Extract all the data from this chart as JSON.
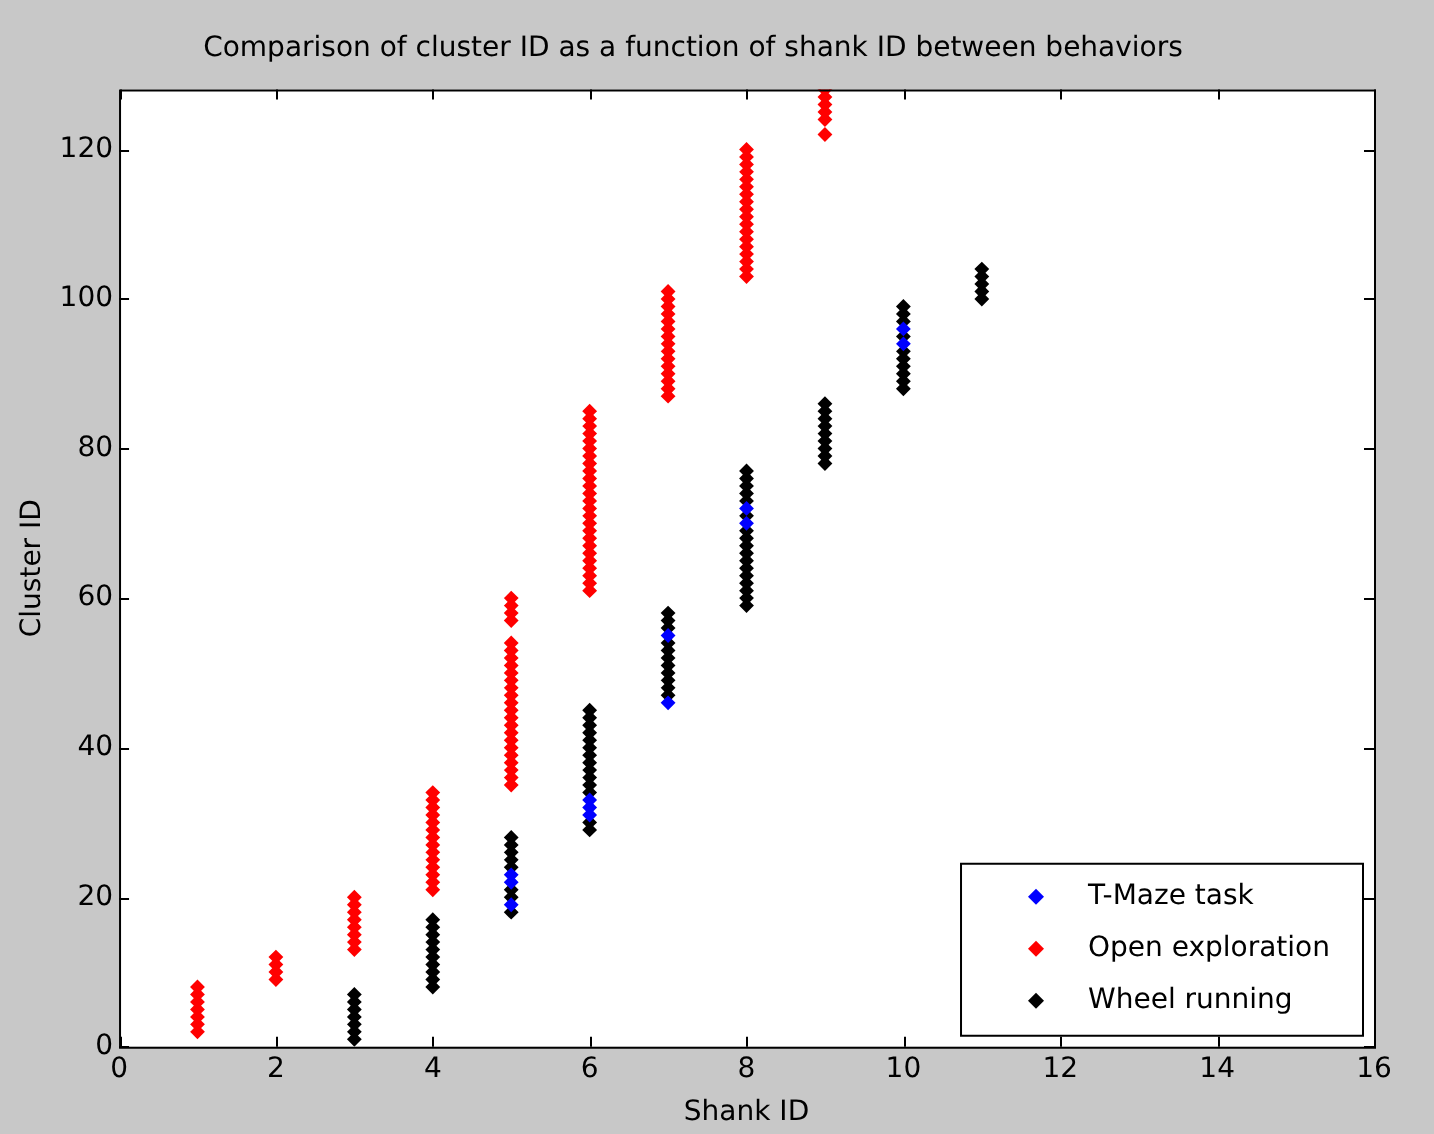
{
  "chart_data": {
    "type": "scatter",
    "title": "Comparison of cluster ID as a function of shank ID between behaviors",
    "xlabel": "Shank ID",
    "ylabel": "Cluster ID",
    "xlim": [
      0,
      16
    ],
    "xticks": [
      0,
      2,
      4,
      6,
      8,
      10,
      12,
      14,
      16
    ],
    "ylim": [
      0,
      128
    ],
    "yticks": [
      0,
      20,
      40,
      60,
      80,
      100,
      120
    ],
    "grid": false,
    "legend": "bottom right",
    "marker": "diamond",
    "series": [
      {
        "name": "T-Maze task",
        "color": "#0000ff",
        "x": [
          5,
          5,
          5,
          6,
          6,
          6,
          7,
          7,
          8,
          8,
          10,
          10
        ],
        "values": [
          19,
          22,
          23,
          31,
          32,
          33,
          46,
          55,
          70,
          72,
          94,
          96
        ]
      },
      {
        "name": "Open exploration",
        "color": "#ff0000",
        "x": [
          1,
          1,
          1,
          1,
          1,
          1,
          1,
          2,
          2,
          2,
          2,
          3,
          3,
          3,
          3,
          3,
          3,
          3,
          3,
          4,
          4,
          4,
          4,
          4,
          4,
          4,
          4,
          4,
          4,
          4,
          4,
          4,
          4,
          5,
          5,
          5,
          5,
          5,
          5,
          5,
          5,
          5,
          5,
          5,
          5,
          5,
          5,
          5,
          5,
          5,
          5,
          5,
          5,
          5,
          5,
          5,
          5,
          6,
          6,
          6,
          6,
          6,
          6,
          6,
          6,
          6,
          6,
          6,
          6,
          6,
          6,
          6,
          6,
          6,
          6,
          6,
          6,
          6,
          6,
          6,
          6,
          6,
          7,
          7,
          7,
          7,
          7,
          7,
          7,
          7,
          7,
          7,
          7,
          7,
          7,
          7,
          7,
          8,
          8,
          8,
          8,
          8,
          8,
          8,
          8,
          8,
          8,
          8,
          8,
          8,
          8,
          8,
          8,
          8,
          8,
          9,
          9,
          9,
          9,
          9,
          9
        ],
        "values": [
          2,
          3,
          4,
          5,
          6,
          7,
          8,
          9,
          10,
          11,
          12,
          13,
          14,
          15,
          16,
          17,
          18,
          19,
          20,
          21,
          22,
          23,
          24,
          25,
          26,
          27,
          28,
          29,
          30,
          31,
          32,
          33,
          34,
          35,
          36,
          37,
          38,
          39,
          40,
          41,
          42,
          43,
          44,
          45,
          46,
          47,
          48,
          49,
          50,
          51,
          52,
          53,
          54,
          57,
          58,
          59,
          60,
          61,
          62,
          63,
          64,
          65,
          66,
          67,
          68,
          69,
          70,
          71,
          72,
          73,
          74,
          75,
          76,
          77,
          78,
          79,
          80,
          81,
          82,
          83,
          84,
          85,
          87,
          88,
          89,
          90,
          91,
          92,
          93,
          94,
          95,
          96,
          97,
          98,
          99,
          100,
          101,
          103,
          104,
          105,
          106,
          107,
          108,
          109,
          110,
          111,
          112,
          113,
          114,
          115,
          116,
          117,
          118,
          119,
          120,
          122,
          124,
          125,
          126,
          127,
          128
        ]
      },
      {
        "name": "Wheel running",
        "color": "#000000",
        "x": [
          3,
          3,
          3,
          3,
          3,
          3,
          3,
          4,
          4,
          4,
          4,
          4,
          4,
          4,
          4,
          4,
          4,
          5,
          5,
          5,
          5,
          5,
          5,
          5,
          5,
          6,
          6,
          6,
          6,
          6,
          6,
          6,
          6,
          6,
          6,
          6,
          6,
          6,
          6,
          7,
          7,
          7,
          7,
          7,
          7,
          7,
          7,
          7,
          7,
          7,
          8,
          8,
          8,
          8,
          8,
          8,
          8,
          8,
          8,
          8,
          8,
          8,
          8,
          8,
          8,
          8,
          8,
          9,
          9,
          9,
          9,
          9,
          9,
          9,
          9,
          9,
          10,
          10,
          10,
          10,
          10,
          10,
          10,
          10,
          10,
          10,
          11,
          11,
          11,
          11,
          11
        ],
        "values": [
          1,
          2,
          3,
          4,
          5,
          6,
          7,
          8,
          9,
          10,
          11,
          12,
          13,
          14,
          15,
          16,
          17,
          18,
          20,
          21,
          24,
          25,
          26,
          27,
          28,
          29,
          30,
          34,
          35,
          36,
          37,
          38,
          39,
          40,
          41,
          42,
          43,
          44,
          45,
          47,
          48,
          49,
          50,
          51,
          52,
          53,
          54,
          56,
          57,
          58,
          59,
          60,
          61,
          62,
          63,
          64,
          65,
          66,
          67,
          68,
          69,
          71,
          73,
          74,
          75,
          76,
          77,
          78,
          79,
          80,
          81,
          82,
          83,
          84,
          85,
          86,
          88,
          89,
          90,
          91,
          92,
          93,
          95,
          97,
          98,
          99,
          100,
          101,
          102,
          103,
          104
        ]
      }
    ]
  }
}
